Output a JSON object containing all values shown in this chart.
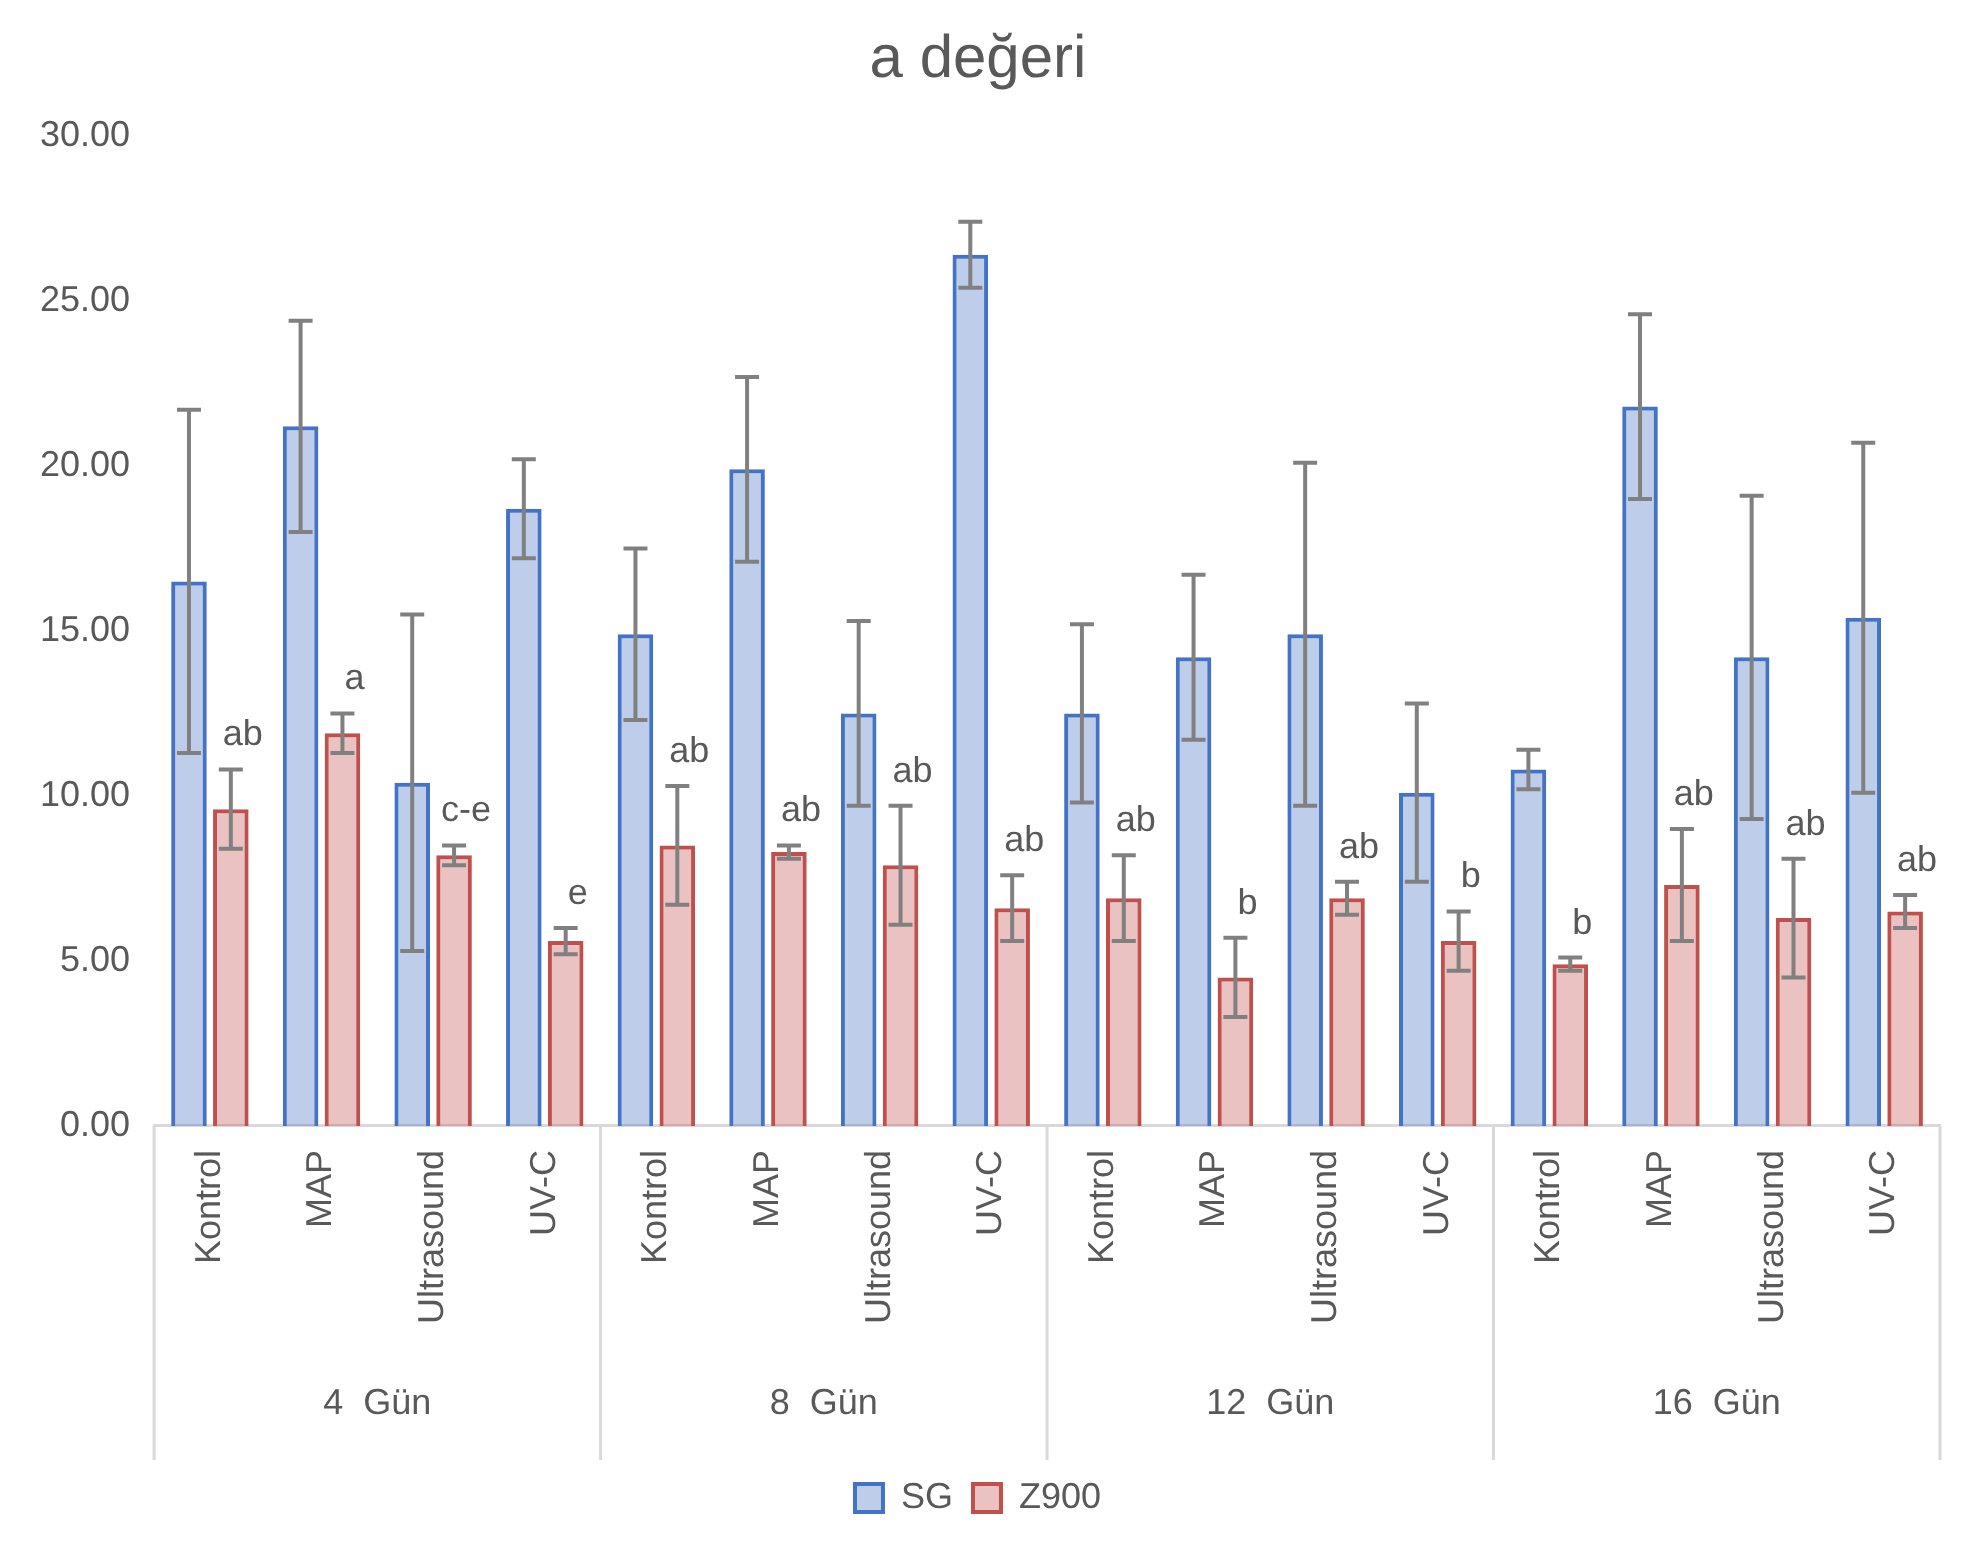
{
  "chart_data": {
    "type": "bar",
    "title": "a değeri",
    "categories": [
      "Kontrol",
      "MAP",
      "Ultrasound",
      "UV-C",
      "Kontrol",
      "MAP",
      "Ultrasound",
      "UV-C",
      "Kontrol",
      "MAP",
      "Ultrasound",
      "UV-C",
      "Kontrol",
      "MAP",
      "Ultrasound",
      "UV-C"
    ],
    "series": [
      {
        "name": "SG",
        "color": "#4472c4",
        "values": [
          16.5,
          21.2,
          10.4,
          18.7,
          14.9,
          19.9,
          12.5,
          26.4,
          12.5,
          14.2,
          14.9,
          10.1,
          10.8,
          21.8,
          14.2,
          15.4
        ],
        "errors": [
          5.2,
          3.2,
          5.1,
          1.5,
          2.6,
          2.8,
          2.8,
          1.0,
          2.7,
          2.5,
          5.2,
          2.7,
          0.6,
          2.8,
          4.9,
          5.3
        ]
      },
      {
        "name": "Z900",
        "color": "#c0504d",
        "values": [
          9.6,
          11.9,
          8.2,
          5.6,
          8.5,
          8.3,
          7.9,
          6.6,
          6.9,
          4.5,
          6.9,
          5.6,
          4.9,
          7.3,
          6.3,
          6.5
        ],
        "errors": [
          1.2,
          0.6,
          0.3,
          0.4,
          1.8,
          0.2,
          1.8,
          1.0,
          1.3,
          1.2,
          0.5,
          0.9,
          0.2,
          1.7,
          1.8,
          0.5
        ],
        "value_labels": [
          "ab",
          "a",
          "c-e",
          "e",
          "ab",
          "ab",
          "ab",
          "ab",
          "ab",
          "b",
          "ab",
          "b",
          "b",
          "ab",
          "ab",
          "ab"
        ]
      }
    ],
    "annotations": [
      "4  Gün",
      "8  Gün",
      "12  Gün",
      "16  Gün"
    ],
    "ylim": [
      0,
      30
    ],
    "yticks": [
      {
        "value": 0,
        "label": "0.00"
      },
      {
        "value": 5,
        "label": "5.00"
      },
      {
        "value": 10,
        "label": "10.00"
      },
      {
        "value": 15,
        "label": "15.00"
      },
      {
        "value": 20,
        "label": "20.00"
      },
      {
        "value": 25,
        "label": "25.00"
      },
      {
        "value": 30,
        "label": "30.00"
      }
    ],
    "grid": false,
    "legend": "bottom"
  }
}
